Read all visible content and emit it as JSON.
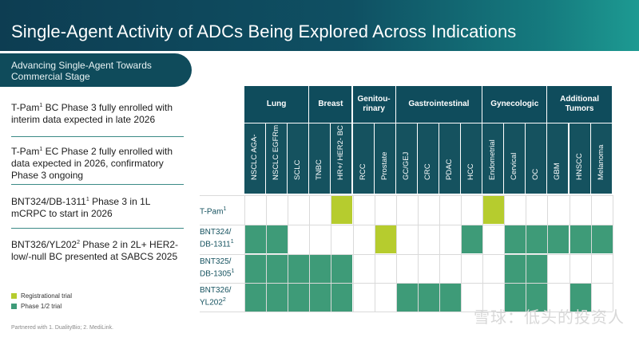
{
  "title": "Single-Agent Activity of ADCs Being Explored Across Indications",
  "subheader": "Advancing Single-Agent Towards Commercial Stage",
  "bullets": [
    {
      "name": "T-Pam",
      "sup": "1",
      "rest": " BC Phase 3 fully enrolled with interim data expected in late 2026"
    },
    {
      "name": "T-Pam",
      "sup": "1",
      "rest": " EC Phase 2 fully enrolled with data expected in 2026, confirmatory Phase 3 ongoing"
    },
    {
      "name": "BNT324/DB-1311",
      "sup": "1",
      "rest": " Phase 3 in 1L mCRPC to start in 2026"
    },
    {
      "name": "BNT326/YL202",
      "sup": "2",
      "rest": " Phase 2 in 2L+ HER2-low/-null BC presented at SABCS 2025"
    }
  ],
  "legend": [
    {
      "label": "Registrational trial",
      "color": "#b6cc2e"
    },
    {
      "label": "Phase 1/2 trial",
      "color": "#3e9b78"
    }
  ],
  "footnote": "Partnered with 1. DualityBio; 2. MediLink.",
  "groups": [
    "Lung",
    "Breast",
    "Genitou-rinary",
    "Gastrointestinal",
    "Gynecologic",
    "Additional Tumors"
  ],
  "indications": [
    "NSCLC AGA-",
    "NSCLC EGFRm",
    "SCLC",
    "TNBC",
    "HR+/ HER2- BC",
    "RCC",
    "Prostate",
    "GC/GEJ",
    "CRC",
    "PDAC",
    "HCC",
    "Endometrial",
    "Cervical",
    "OC",
    "GBM",
    "HNSCC",
    "Melanoma"
  ],
  "rows": [
    {
      "label": "T-Pam",
      "sup": "1",
      "cells": [
        0,
        0,
        0,
        0,
        2,
        0,
        0,
        0,
        0,
        0,
        0,
        2,
        0,
        0,
        0,
        0,
        0
      ]
    },
    {
      "label": "BNT324/ DB-1311",
      "sup": "1",
      "cells": [
        1,
        1,
        0,
        0,
        0,
        0,
        2,
        0,
        0,
        0,
        1,
        0,
        1,
        1,
        1,
        1,
        1
      ]
    },
    {
      "label": "BNT325/ DB-1305",
      "sup": "1",
      "cells": [
        1,
        1,
        1,
        1,
        1,
        0,
        0,
        0,
        0,
        0,
        0,
        0,
        1,
        1,
        0,
        0,
        0
      ]
    },
    {
      "label": "BNT326/ YL202",
      "sup": "2",
      "cells": [
        1,
        1,
        1,
        1,
        1,
        0,
        0,
        1,
        1,
        1,
        0,
        0,
        1,
        1,
        0,
        1,
        0
      ]
    }
  ],
  "watermark": "雪球：低头的投资人"
}
